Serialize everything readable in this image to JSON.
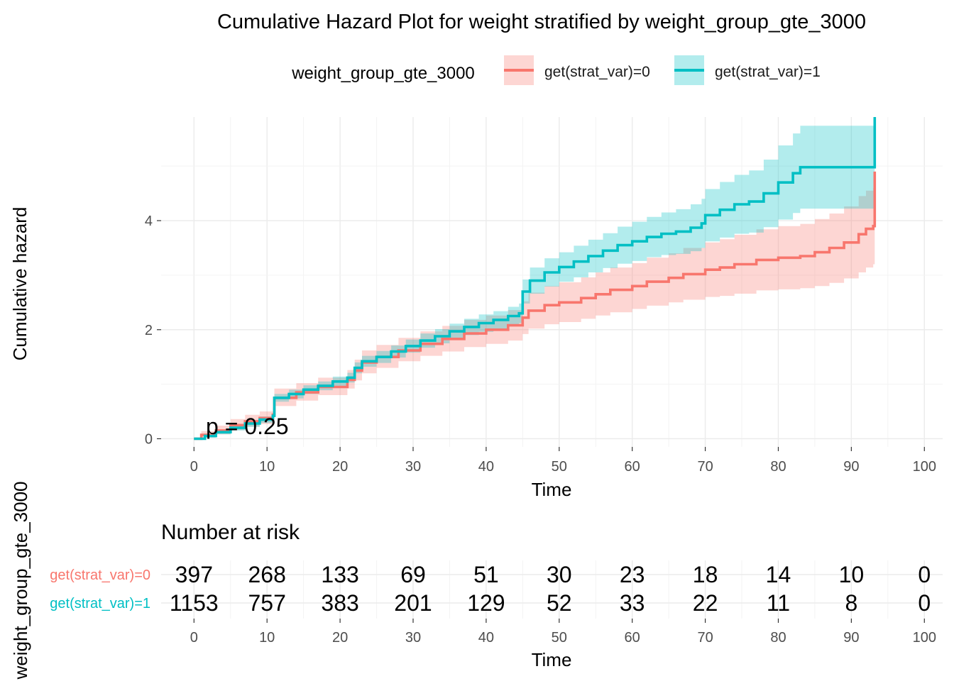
{
  "chart_data": {
    "type": "line",
    "title": "Cumulative Hazard Plot for weight stratified by weight_group_gte_3000",
    "xlabel": "Time",
    "ylabel": "Cumulative hazard",
    "xlim": [
      -4.5,
      102.5
    ],
    "ylim": [
      -0.15,
      5.9
    ],
    "xticks": [
      0,
      10,
      20,
      30,
      40,
      50,
      60,
      70,
      80,
      90,
      100
    ],
    "yticks": [
      0,
      2,
      4
    ],
    "grid": true,
    "legend": {
      "title": "weight_group_gte_3000",
      "position": "top",
      "entries": [
        "get(strat_var)=0",
        "get(strat_var)=1"
      ]
    },
    "annotation": "p = 0.25",
    "colors": {
      "group0": "#F8766D",
      "group1": "#00BFC4"
    },
    "series": [
      {
        "name": "get(strat_var)=0",
        "color": "#F8766D",
        "points": [
          [
            0,
            0
          ],
          [
            1,
            0.07
          ],
          [
            3,
            0.15
          ],
          [
            5,
            0.25
          ],
          [
            7,
            0.32
          ],
          [
            9,
            0.38
          ],
          [
            10.8,
            0.44
          ],
          [
            11,
            0.75
          ],
          [
            14,
            0.85
          ],
          [
            17,
            0.95
          ],
          [
            21,
            1.08
          ],
          [
            22,
            1.25
          ],
          [
            23,
            1.4
          ],
          [
            25,
            1.5
          ],
          [
            28,
            1.62
          ],
          [
            31,
            1.74
          ],
          [
            34,
            1.83
          ],
          [
            37,
            1.93
          ],
          [
            40,
            2.0
          ],
          [
            43,
            2.08
          ],
          [
            45,
            2.22
          ],
          [
            45.8,
            2.35
          ],
          [
            48,
            2.45
          ],
          [
            50,
            2.5
          ],
          [
            53,
            2.58
          ],
          [
            55,
            2.65
          ],
          [
            57,
            2.73
          ],
          [
            60,
            2.8
          ],
          [
            62,
            2.88
          ],
          [
            65,
            2.95
          ],
          [
            67,
            3.02
          ],
          [
            70,
            3.1
          ],
          [
            72,
            3.14
          ],
          [
            74,
            3.2
          ],
          [
            77,
            3.28
          ],
          [
            80,
            3.32
          ],
          [
            83,
            3.35
          ],
          [
            85,
            3.42
          ],
          [
            87,
            3.5
          ],
          [
            89,
            3.6
          ],
          [
            91,
            3.75
          ],
          [
            92,
            3.85
          ],
          [
            93,
            3.9
          ],
          [
            93.2,
            4.9
          ]
        ],
        "ci_lower": [
          [
            0,
            0
          ],
          [
            1,
            0.02
          ],
          [
            3,
            0.08
          ],
          [
            5,
            0.16
          ],
          [
            7,
            0.22
          ],
          [
            9,
            0.27
          ],
          [
            10.8,
            0.32
          ],
          [
            11,
            0.6
          ],
          [
            14,
            0.7
          ],
          [
            17,
            0.8
          ],
          [
            21,
            0.92
          ],
          [
            22,
            1.07
          ],
          [
            23,
            1.2
          ],
          [
            25,
            1.3
          ],
          [
            28,
            1.42
          ],
          [
            31,
            1.52
          ],
          [
            34,
            1.6
          ],
          [
            37,
            1.68
          ],
          [
            40,
            1.74
          ],
          [
            43,
            1.8
          ],
          [
            45,
            1.92
          ],
          [
            45.8,
            2.02
          ],
          [
            48,
            2.1
          ],
          [
            50,
            2.14
          ],
          [
            53,
            2.2
          ],
          [
            55,
            2.26
          ],
          [
            57,
            2.32
          ],
          [
            60,
            2.38
          ],
          [
            62,
            2.44
          ],
          [
            65,
            2.5
          ],
          [
            67,
            2.55
          ],
          [
            70,
            2.6
          ],
          [
            72,
            2.62
          ],
          [
            74,
            2.66
          ],
          [
            77,
            2.72
          ],
          [
            80,
            2.74
          ],
          [
            83,
            2.76
          ],
          [
            85,
            2.8
          ],
          [
            87,
            2.86
          ],
          [
            89,
            2.94
          ],
          [
            91,
            3.05
          ],
          [
            92,
            3.14
          ],
          [
            93,
            3.2
          ],
          [
            93.2,
            3.2
          ]
        ],
        "ci_upper": [
          [
            0,
            0
          ],
          [
            1,
            0.14
          ],
          [
            3,
            0.24
          ],
          [
            5,
            0.36
          ],
          [
            7,
            0.44
          ],
          [
            9,
            0.5
          ],
          [
            10.8,
            0.57
          ],
          [
            11,
            0.92
          ],
          [
            14,
            1.02
          ],
          [
            17,
            1.12
          ],
          [
            21,
            1.26
          ],
          [
            22,
            1.45
          ],
          [
            23,
            1.62
          ],
          [
            25,
            1.72
          ],
          [
            28,
            1.85
          ],
          [
            31,
            1.97
          ],
          [
            34,
            2.07
          ],
          [
            37,
            2.18
          ],
          [
            40,
            2.26
          ],
          [
            43,
            2.36
          ],
          [
            45,
            2.52
          ],
          [
            45.8,
            2.68
          ],
          [
            48,
            2.8
          ],
          [
            50,
            2.87
          ],
          [
            53,
            2.96
          ],
          [
            55,
            3.05
          ],
          [
            57,
            3.14
          ],
          [
            60,
            3.22
          ],
          [
            62,
            3.32
          ],
          [
            65,
            3.4
          ],
          [
            67,
            3.5
          ],
          [
            70,
            3.6
          ],
          [
            72,
            3.66
          ],
          [
            74,
            3.74
          ],
          [
            77,
            3.84
          ],
          [
            80,
            3.9
          ],
          [
            83,
            3.94
          ],
          [
            85,
            4.03
          ],
          [
            87,
            4.13
          ],
          [
            89,
            4.26
          ],
          [
            91,
            4.45
          ],
          [
            92,
            4.55
          ],
          [
            93,
            4.6
          ],
          [
            93.2,
            4.6
          ]
        ]
      },
      {
        "name": "get(strat_var)=1",
        "color": "#00BFC4",
        "points": [
          [
            0,
            0
          ],
          [
            1.5,
            0.05
          ],
          [
            3,
            0.12
          ],
          [
            5,
            0.2
          ],
          [
            7,
            0.28
          ],
          [
            9,
            0.35
          ],
          [
            10.8,
            0.42
          ],
          [
            11,
            0.75
          ],
          [
            13,
            0.82
          ],
          [
            15,
            0.9
          ],
          [
            17,
            0.97
          ],
          [
            19,
            1.05
          ],
          [
            21,
            1.12
          ],
          [
            22,
            1.3
          ],
          [
            23,
            1.42
          ],
          [
            25,
            1.5
          ],
          [
            27,
            1.6
          ],
          [
            29,
            1.7
          ],
          [
            31,
            1.8
          ],
          [
            33,
            1.88
          ],
          [
            35,
            1.97
          ],
          [
            37,
            2.05
          ],
          [
            39,
            2.12
          ],
          [
            41,
            2.18
          ],
          [
            43,
            2.25
          ],
          [
            44.5,
            2.3
          ],
          [
            45,
            2.7
          ],
          [
            46,
            2.9
          ],
          [
            48,
            3.05
          ],
          [
            50,
            3.15
          ],
          [
            52,
            3.25
          ],
          [
            54,
            3.35
          ],
          [
            56,
            3.45
          ],
          [
            58,
            3.55
          ],
          [
            60,
            3.62
          ],
          [
            62,
            3.7
          ],
          [
            64,
            3.76
          ],
          [
            66,
            3.8
          ],
          [
            68,
            3.87
          ],
          [
            69.5,
            3.95
          ],
          [
            70,
            4.1
          ],
          [
            72,
            4.2
          ],
          [
            74,
            4.3
          ],
          [
            76,
            4.35
          ],
          [
            78,
            4.5
          ],
          [
            80,
            4.7
          ],
          [
            82,
            4.87
          ],
          [
            83,
            4.98
          ],
          [
            85,
            4.98
          ],
          [
            90,
            4.98
          ],
          [
            93,
            4.98
          ],
          [
            93.2,
            5.9
          ]
        ],
        "ci_lower": [
          [
            0,
            0
          ],
          [
            1.5,
            0.02
          ],
          [
            3,
            0.08
          ],
          [
            5,
            0.15
          ],
          [
            7,
            0.22
          ],
          [
            9,
            0.29
          ],
          [
            10.8,
            0.36
          ],
          [
            11,
            0.68
          ],
          [
            13,
            0.74
          ],
          [
            15,
            0.82
          ],
          [
            17,
            0.89
          ],
          [
            19,
            0.96
          ],
          [
            21,
            1.03
          ],
          [
            22,
            1.2
          ],
          [
            23,
            1.32
          ],
          [
            25,
            1.39
          ],
          [
            27,
            1.49
          ],
          [
            29,
            1.58
          ],
          [
            31,
            1.67
          ],
          [
            33,
            1.75
          ],
          [
            35,
            1.83
          ],
          [
            37,
            1.9
          ],
          [
            39,
            1.96
          ],
          [
            41,
            2.02
          ],
          [
            43,
            2.08
          ],
          [
            44.5,
            2.12
          ],
          [
            45,
            2.48
          ],
          [
            46,
            2.66
          ],
          [
            48,
            2.79
          ],
          [
            50,
            2.88
          ],
          [
            52,
            2.96
          ],
          [
            54,
            3.05
          ],
          [
            56,
            3.13
          ],
          [
            58,
            3.21
          ],
          [
            60,
            3.26
          ],
          [
            62,
            3.33
          ],
          [
            64,
            3.37
          ],
          [
            66,
            3.39
          ],
          [
            68,
            3.44
          ],
          [
            69.5,
            3.5
          ],
          [
            70,
            3.62
          ],
          [
            72,
            3.69
          ],
          [
            74,
            3.76
          ],
          [
            76,
            3.78
          ],
          [
            78,
            3.88
          ],
          [
            80,
            4.02
          ],
          [
            82,
            4.14
          ],
          [
            83,
            4.22
          ],
          [
            85,
            4.22
          ],
          [
            90,
            4.22
          ],
          [
            93,
            4.22
          ],
          [
            93.2,
            4.22
          ]
        ],
        "ci_upper": [
          [
            0,
            0
          ],
          [
            1.5,
            0.08
          ],
          [
            3,
            0.16
          ],
          [
            5,
            0.25
          ],
          [
            7,
            0.34
          ],
          [
            9,
            0.41
          ],
          [
            10.8,
            0.48
          ],
          [
            11,
            0.82
          ],
          [
            13,
            0.9
          ],
          [
            15,
            0.98
          ],
          [
            17,
            1.05
          ],
          [
            19,
            1.14
          ],
          [
            21,
            1.21
          ],
          [
            22,
            1.4
          ],
          [
            23,
            1.52
          ],
          [
            25,
            1.61
          ],
          [
            27,
            1.71
          ],
          [
            29,
            1.82
          ],
          [
            31,
            1.93
          ],
          [
            33,
            2.01
          ],
          [
            35,
            2.11
          ],
          [
            37,
            2.2
          ],
          [
            39,
            2.28
          ],
          [
            41,
            2.34
          ],
          [
            43,
            2.42
          ],
          [
            44.5,
            2.48
          ],
          [
            45,
            2.92
          ],
          [
            46,
            3.14
          ],
          [
            48,
            3.31
          ],
          [
            50,
            3.42
          ],
          [
            52,
            3.54
          ],
          [
            54,
            3.65
          ],
          [
            56,
            3.77
          ],
          [
            58,
            3.89
          ],
          [
            60,
            3.98
          ],
          [
            62,
            4.07
          ],
          [
            64,
            4.15
          ],
          [
            66,
            4.21
          ],
          [
            68,
            4.3
          ],
          [
            69.5,
            4.4
          ],
          [
            70,
            4.58
          ],
          [
            72,
            4.71
          ],
          [
            74,
            4.84
          ],
          [
            76,
            4.92
          ],
          [
            78,
            5.12
          ],
          [
            80,
            5.38
          ],
          [
            82,
            5.6
          ],
          [
            83,
            5.74
          ],
          [
            85,
            5.74
          ],
          [
            90,
            5.74
          ],
          [
            93,
            5.74
          ],
          [
            93.2,
            5.74
          ]
        ]
      }
    ],
    "risk_table": {
      "title": "Number at risk",
      "ylabel": "weight_group_gte_3000",
      "xlabel": "Time",
      "times": [
        0,
        10,
        20,
        30,
        40,
        50,
        60,
        70,
        80,
        90,
        100
      ],
      "rows": [
        {
          "name": "get(strat_var)=0",
          "color": "#F8766D",
          "counts": [
            397,
            268,
            133,
            69,
            51,
            30,
            23,
            18,
            14,
            10,
            0
          ]
        },
        {
          "name": "get(strat_var)=1",
          "color": "#00BFC4",
          "counts": [
            1153,
            757,
            383,
            201,
            129,
            52,
            33,
            22,
            11,
            8,
            0
          ]
        }
      ]
    }
  }
}
